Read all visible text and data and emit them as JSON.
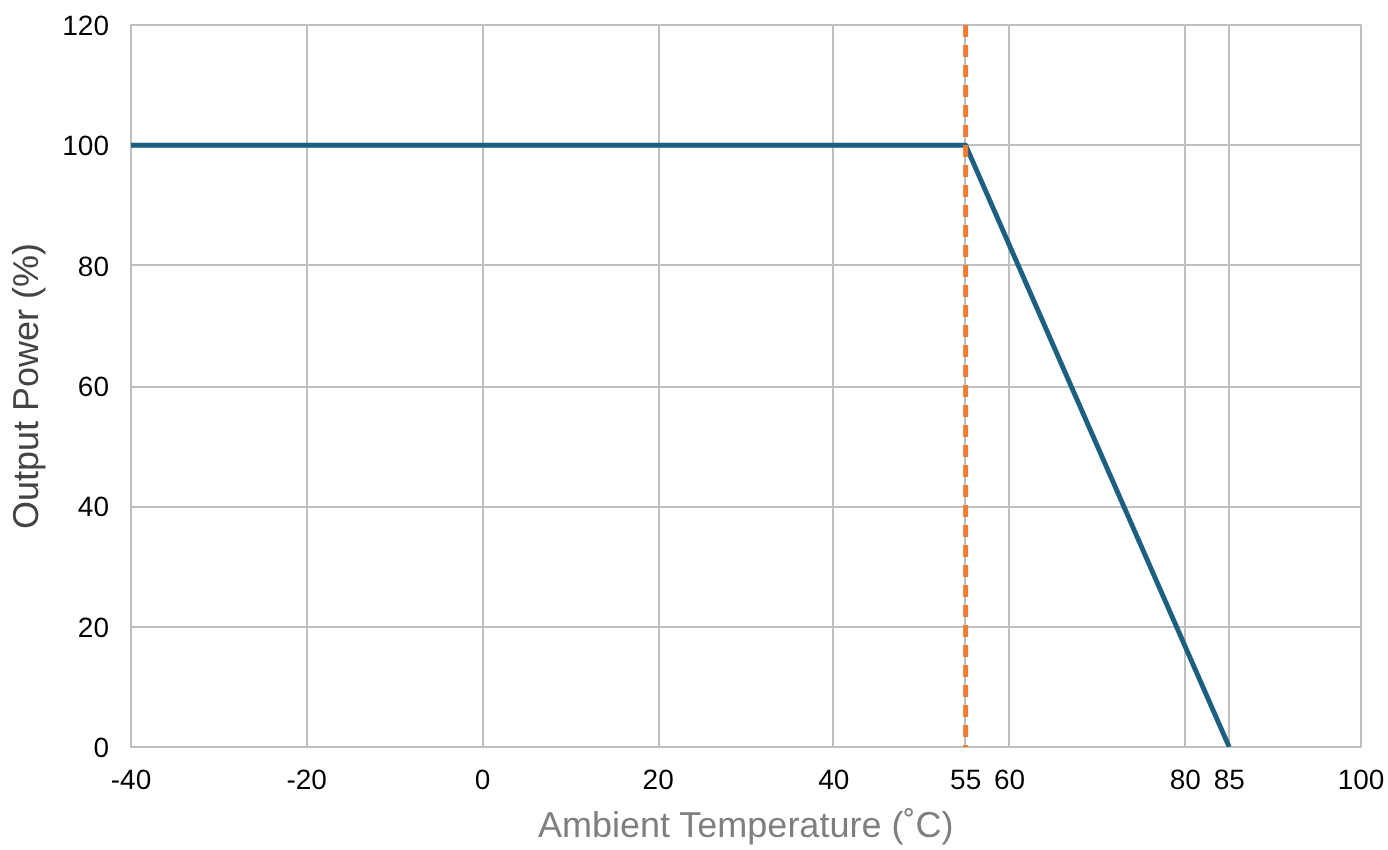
{
  "chart_data": {
    "type": "line",
    "xlabel": "Ambient Temperature (˚C)",
    "ylabel": "Output Power (%)",
    "x": [
      -40,
      55,
      85
    ],
    "series": [
      {
        "color": "#1c5f80",
        "values": [
          100,
          100,
          0
        ]
      }
    ],
    "xlim": [
      -40,
      100
    ],
    "xticks": [
      -40,
      -20,
      0,
      20,
      40,
      55,
      60,
      80,
      85,
      100
    ],
    "ylim": [
      0,
      120
    ],
    "yticks": [
      0,
      20,
      40,
      60,
      80,
      100,
      120
    ],
    "ref_lines": [
      {
        "axis": "x",
        "value": 55,
        "color": "#ed7d31",
        "line_style": "dashed"
      }
    ],
    "grid": true,
    "marker": "none",
    "line_style": "solid"
  }
}
